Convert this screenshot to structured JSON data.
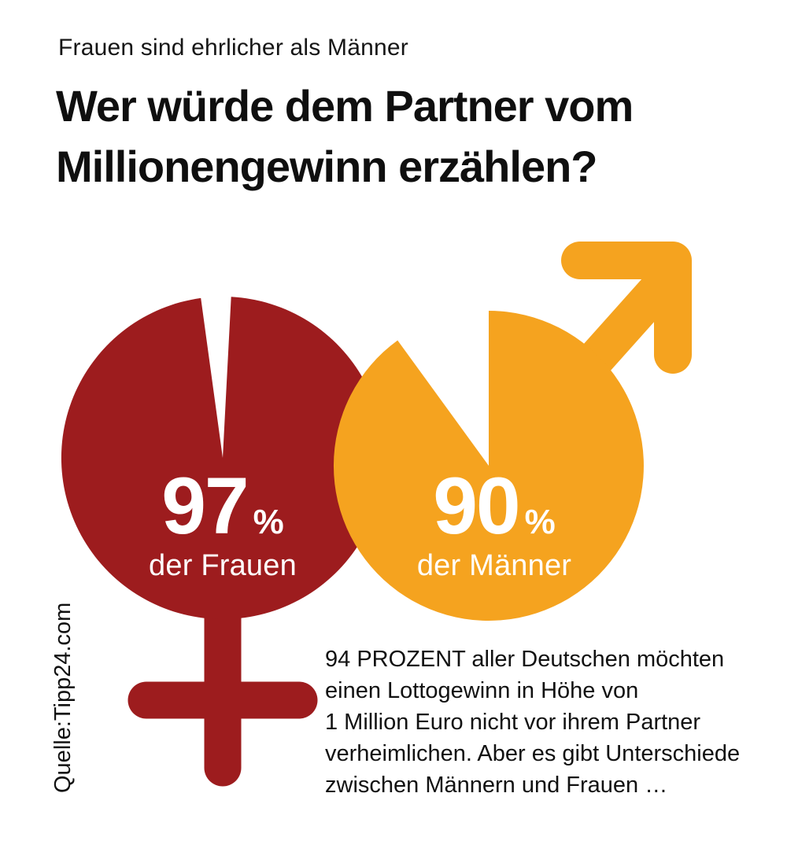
{
  "page": {
    "kicker": "Frauen sind ehrlicher als Männer",
    "title_line1": "Wer würde dem Partner vom",
    "title_line2": "Millionengewinn erzählen?",
    "source": "Quelle:Tipp24.com",
    "body_lines": [
      "94 PROZENT aller Deutschen möchten",
      "einen Lottogewinn in Höhe von",
      "1 Million Euro nicht vor ihrem Partner",
      "verheimlichen. Aber es gibt Unterschiede",
      "zwischen Männern und Frauen …"
    ]
  },
  "chart_data": {
    "type": "pie",
    "title": "Wer würde dem Partner vom Millionengewinn erzählen?",
    "subtitle": "Frauen sind ehrlicher als Männer",
    "source": "Quelle:Tipp24.com",
    "legend_position": "inside",
    "series": [
      {
        "name": "Frauen",
        "symbol": "female",
        "value": 97,
        "unit": "%",
        "label": "der Frauen",
        "color": "#9d1c1e"
      },
      {
        "name": "Männer",
        "symbol": "male",
        "value": 90,
        "unit": "%",
        "label": "der Männer",
        "color": "#f5a31f"
      }
    ],
    "note": "94 PROZENT aller Deutschen möchten einen Lottogewinn in Höhe von 1 Million Euro nicht vor ihrem Partner verheimlichen. Aber es gibt Unterschiede zwischen Männern und Frauen …"
  }
}
